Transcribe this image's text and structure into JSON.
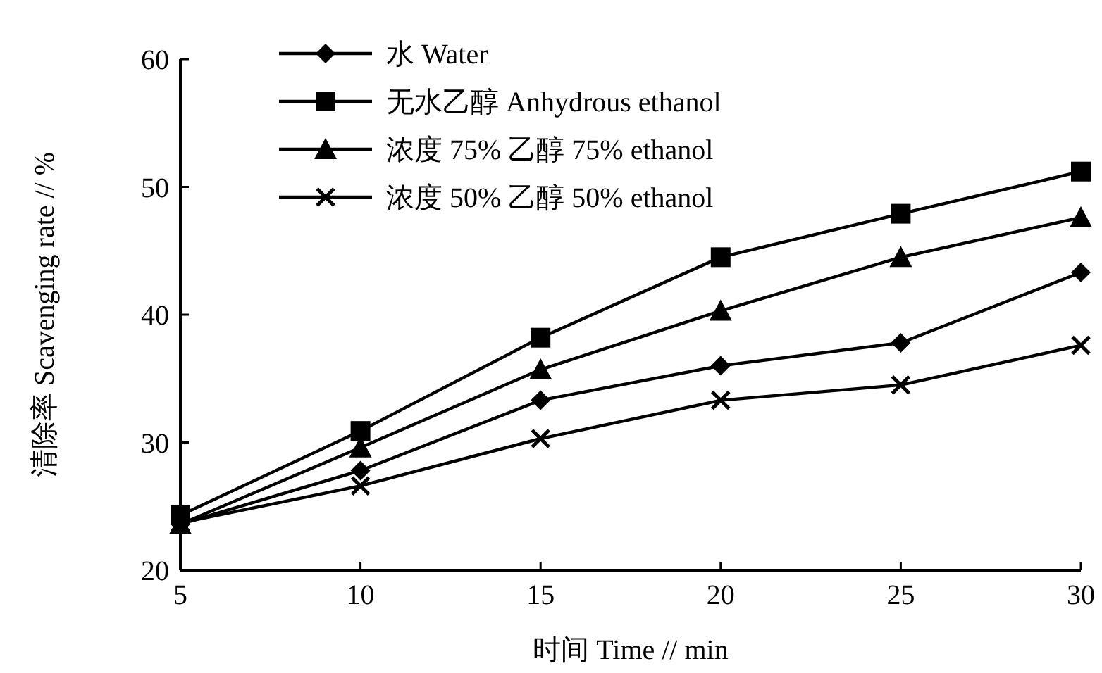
{
  "chart_data": {
    "type": "line",
    "xlabel": "时间 Time // min",
    "ylabel": "清除率 Scavenging rate // %",
    "x": [
      5,
      10,
      15,
      20,
      25,
      30
    ],
    "xlim": [
      5,
      30
    ],
    "xticks": [
      5,
      10,
      15,
      20,
      25,
      30
    ],
    "ylim": [
      20,
      60
    ],
    "yticks": [
      20,
      30,
      40,
      50,
      60
    ],
    "legend": "top left",
    "grid": false,
    "line_style": "solid",
    "series": [
      {
        "name": "水 Water",
        "color": "#000000",
        "marker": "diamond",
        "values": [
          23.6,
          27.8,
          33.3,
          36.0,
          37.8,
          43.3
        ]
      },
      {
        "name": "无水乙醇 Anhydrous  ethanol",
        "color": "#000000",
        "marker": "square",
        "values": [
          24.3,
          30.9,
          38.2,
          44.5,
          47.9,
          51.2
        ]
      },
      {
        "name": "浓度 75% 乙醇 75% ethanol",
        "color": "#000000",
        "marker": "triangle",
        "values": [
          23.6,
          29.6,
          35.7,
          40.3,
          44.5,
          47.6
        ]
      },
      {
        "name": "浓度 50% 乙醇 50% ethanol",
        "color": "#000000",
        "marker": "cross",
        "values": [
          23.7,
          26.6,
          30.3,
          33.3,
          34.5,
          37.6
        ]
      }
    ]
  }
}
